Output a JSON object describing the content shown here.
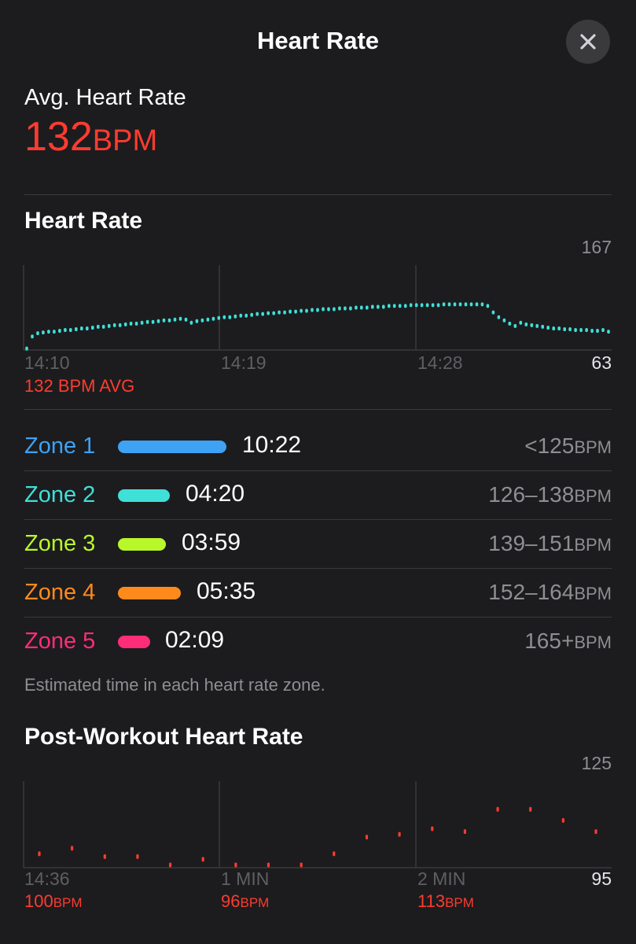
{
  "header": {
    "title": "Heart Rate",
    "close_icon": "close-icon"
  },
  "summary": {
    "label": "Avg. Heart Rate",
    "value": "132",
    "unit": "BPM",
    "color": "#ff3b30"
  },
  "heart_rate_section": {
    "title": "Heart Rate",
    "avg_note": "132 BPM AVG"
  },
  "zones": {
    "items": [
      {
        "name": "Zone 1",
        "time": "10:22",
        "range": "<125",
        "unit": "BPM",
        "color": "#3ea2f5"
      },
      {
        "name": "Zone 2",
        "time": "04:20",
        "range": "126–138",
        "unit": "BPM",
        "color": "#3fe0d8"
      },
      {
        "name": "Zone 3",
        "time": "03:59",
        "range": "139–151",
        "unit": "BPM",
        "color": "#b8f82a"
      },
      {
        "name": "Zone 4",
        "time": "05:35",
        "range": "152–164",
        "unit": "BPM",
        "color": "#ff8a1c"
      },
      {
        "name": "Zone 5",
        "time": "02:09",
        "range": "165+",
        "unit": "BPM",
        "color": "#ff2d78"
      }
    ],
    "footnote": "Estimated time in each heart rate zone."
  },
  "post_workout": {
    "title": "Post-Workout Heart Rate",
    "labels": [
      {
        "value": "100",
        "unit": "BPM"
      },
      {
        "value": "96",
        "unit": "BPM"
      },
      {
        "value": "113",
        "unit": "BPM"
      }
    ]
  },
  "chart_data": [
    {
      "type": "line",
      "ylim": [
        63,
        167
      ],
      "y_ticks": [
        "167",
        "63"
      ],
      "x_tick_labels": [
        "14:10",
        "14:19",
        "14:28"
      ],
      "values": [
        65,
        80,
        84,
        85,
        86,
        86,
        87,
        88,
        88,
        89,
        90,
        90,
        91,
        92,
        92,
        93,
        94,
        94,
        95,
        96,
        96,
        97,
        98,
        98,
        99,
        100,
        100,
        101,
        102,
        101,
        97,
        99,
        100,
        101,
        102,
        103,
        104,
        104,
        105,
        106,
        106,
        107,
        108,
        108,
        109,
        109,
        110,
        110,
        111,
        111,
        112,
        112,
        113,
        113,
        114,
        114,
        114,
        115,
        115,
        115,
        116,
        116,
        116,
        117,
        117,
        117,
        118,
        118,
        118,
        118,
        119,
        119,
        119,
        119,
        119,
        119,
        120,
        120,
        120,
        120,
        120,
        120,
        120,
        120,
        118,
        110,
        104,
        100,
        96,
        93,
        97,
        95,
        94,
        93,
        92,
        91,
        90,
        90,
        89,
        89,
        88,
        88,
        88,
        87,
        87,
        88,
        86
      ]
    },
    {
      "type": "scatter",
      "ylim": [
        95,
        125
      ],
      "y_ticks": [
        "125",
        "95"
      ],
      "x_tick_labels": [
        "14:36",
        "1 MIN",
        "2 MIN"
      ],
      "values": [
        100,
        102,
        99,
        99,
        96,
        98,
        96,
        96,
        96,
        100,
        106,
        107,
        109,
        108,
        116,
        116,
        112,
        108
      ]
    }
  ]
}
